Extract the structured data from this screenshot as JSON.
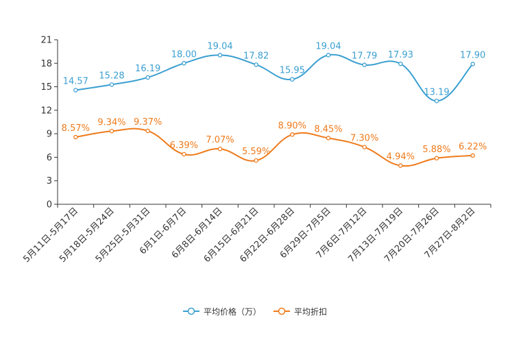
{
  "chart_data": {
    "type": "line",
    "title": "",
    "xlabel": "",
    "ylabel": "",
    "ylim": [
      0,
      21
    ],
    "yticks": [
      0,
      3,
      6,
      9,
      12,
      15,
      18,
      21
    ],
    "categories": [
      "5月11日-5月17日",
      "5月18日-5月24日",
      "5月25日-5月31日",
      "6月1日-6月7日",
      "6月8日-6月14日",
      "6月15日-6月21日",
      "6月22日-6月28日",
      "6月29日-7月5日",
      "7月6日-7月12日",
      "7月13日-7月19日",
      "7月20日-7月26日",
      "7月27日-8月2日"
    ],
    "legend_position": "bottom",
    "grid": false,
    "series": [
      {
        "name": "平均价格（万）",
        "color": "#3a9fd1",
        "values": [
          14.57,
          15.28,
          16.19,
          18.0,
          19.04,
          17.82,
          15.95,
          19.04,
          17.79,
          17.93,
          13.19,
          17.9
        ],
        "labels": [
          "14.57",
          "15.28",
          "16.19",
          "18.00",
          "19.04",
          "17.82",
          "15.95",
          "19.04",
          "17.79",
          "17.93",
          "13.19",
          "17.90"
        ]
      },
      {
        "name": "平均折扣",
        "color": "#ef7a1a",
        "values": [
          8.57,
          9.34,
          9.37,
          6.39,
          7.07,
          5.59,
          8.9,
          8.45,
          7.3,
          4.94,
          5.88,
          6.22
        ],
        "labels": [
          "8.57%",
          "9.34%",
          "9.37%",
          "6.39%",
          "7.07%",
          "5.59%",
          "8.90%",
          "8.45%",
          "7.30%",
          "4.94%",
          "5.88%",
          "6.22%"
        ]
      }
    ]
  }
}
